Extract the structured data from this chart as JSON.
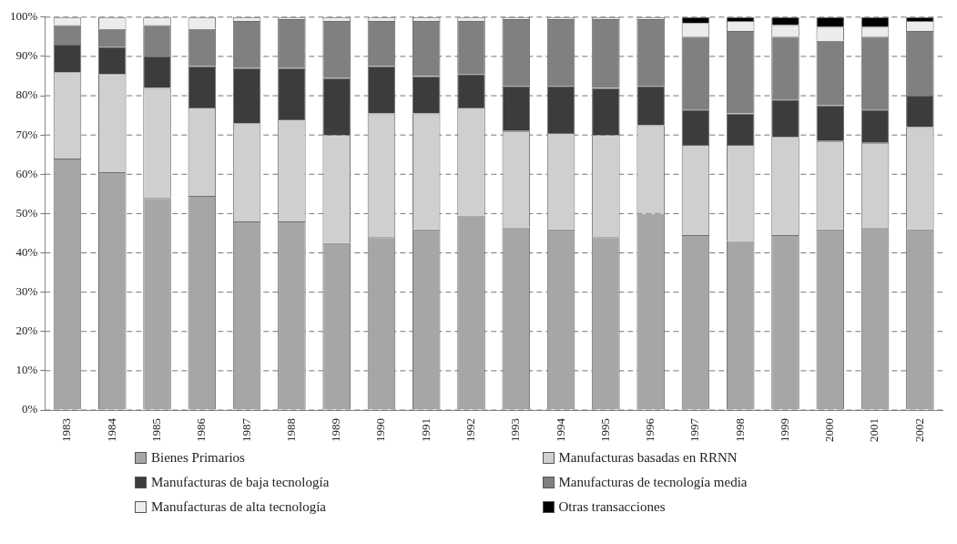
{
  "chart_data": {
    "type": "bar",
    "stacked": true,
    "categories": [
      "1983",
      "1984",
      "1985",
      "1986",
      "1987",
      "1988",
      "1989",
      "1990",
      "1991",
      "1992",
      "1993",
      "1994",
      "1995",
      "1996",
      "1997",
      "1998",
      "1999",
      "2000",
      "2001",
      "2002"
    ],
    "series": [
      {
        "name": "Bienes Primarios",
        "color": "#a6a6a6",
        "values": [
          64,
          60.5,
          54,
          54.5,
          48,
          48,
          42.5,
          44,
          46,
          49.5,
          46.5,
          46,
          44,
          50,
          44.5,
          43,
          44.5,
          46,
          46.5,
          46
        ]
      },
      {
        "name": "Manufacturas basadas en RRNN",
        "color": "#cfcfcf",
        "values": [
          22,
          25,
          28,
          22.5,
          25,
          26,
          27.5,
          31.5,
          29.5,
          27.5,
          24.5,
          24.5,
          26,
          22.5,
          23,
          24.5,
          25,
          22.5,
          21.5,
          26
        ]
      },
      {
        "name": "Manufacturas de baja tecnología",
        "color": "#3c3c3c",
        "values": [
          7,
          7,
          8,
          10.5,
          14,
          13,
          14.5,
          12,
          9.5,
          8.5,
          11.5,
          12,
          12,
          10,
          9,
          8,
          9.5,
          9,
          8.5,
          8
        ]
      },
      {
        "name": "Manufacturas de tecnología media",
        "color": "#808080",
        "values": [
          5,
          4.5,
          8,
          9.5,
          12,
          12.5,
          14.5,
          11.5,
          14,
          13.5,
          17,
          17,
          17.5,
          17,
          18.5,
          21,
          16,
          16.5,
          18.5,
          16.5
        ]
      },
      {
        "name": "Manufacturas de alta tecnología",
        "color": "#ececec",
        "values": [
          2,
          3,
          2,
          3,
          1,
          0.5,
          1,
          1,
          1,
          1,
          0.5,
          0.5,
          0.5,
          0.5,
          3.5,
          2.5,
          3,
          3.5,
          2.5,
          2.5
        ]
      },
      {
        "name": "Otras transacciones",
        "color": "#000000",
        "values": [
          0,
          0,
          0,
          0,
          0,
          0,
          0,
          0,
          0,
          0,
          0,
          0,
          0,
          0,
          1.5,
          1,
          2,
          2.5,
          2.5,
          1
        ]
      }
    ],
    "ylim": [
      0,
      100
    ],
    "yticks": [
      {
        "value": 0,
        "label": "0%"
      },
      {
        "value": 10,
        "label": "10%"
      },
      {
        "value": 20,
        "label": "20%"
      },
      {
        "value": 30,
        "label": "30%"
      },
      {
        "value": 40,
        "label": "40%"
      },
      {
        "value": 50,
        "label": "50%"
      },
      {
        "value": 60,
        "label": "60%"
      },
      {
        "value": 70,
        "label": "70%"
      },
      {
        "value": 80,
        "label": "80%"
      },
      {
        "value": 90,
        "label": "90%"
      },
      {
        "value": 100,
        "label": "100%"
      }
    ],
    "grid": "y",
    "legend": "bottom"
  }
}
